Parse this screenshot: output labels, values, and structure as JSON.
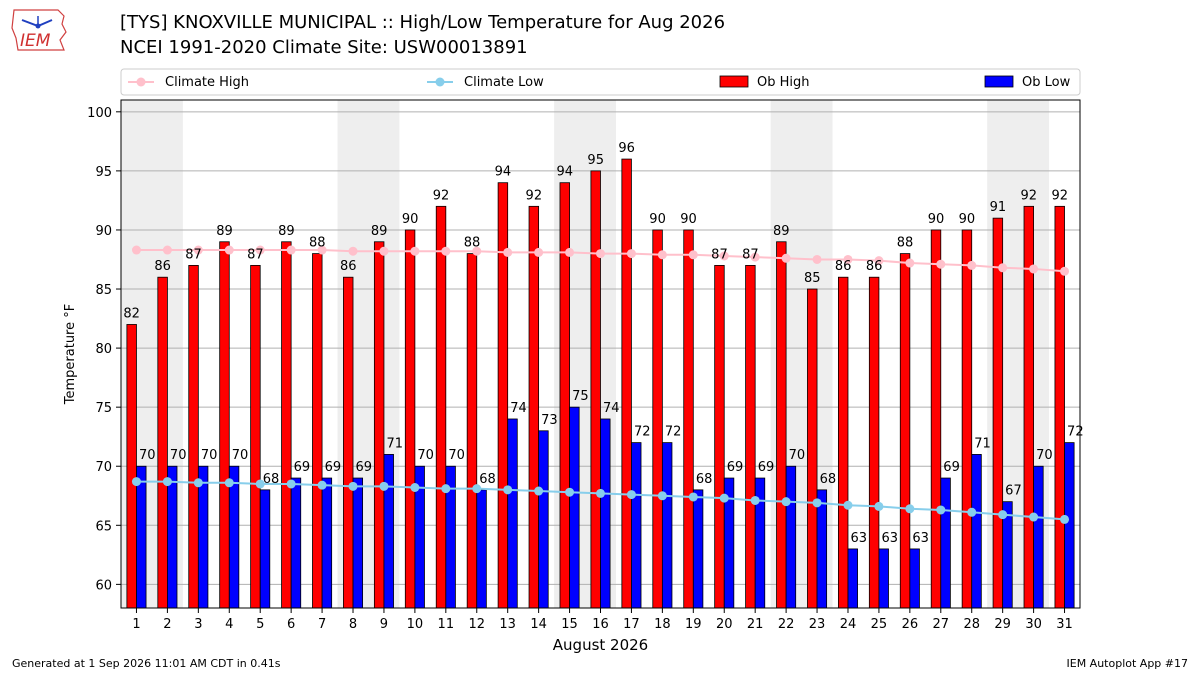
{
  "header": {
    "title_line1": "[TYS] KNOXVILLE MUNICIPAL :: High/Low Temperature for Aug 2026",
    "title_line2": "NCEI 1991-2020 Climate Site: USW00013891",
    "logo_text": "IEM"
  },
  "footer": {
    "generated": "Generated at 1 Sep 2026 11:01 AM CDT in 0.41s",
    "app": "IEM Autoplot App #17"
  },
  "colors": {
    "ob_high": "#ff0000",
    "ob_low": "#0000ff",
    "climate_high": "#ffc0cb",
    "climate_low": "#87ceeb",
    "weekend_shade": "#eeeeee",
    "grid": "#b0b0b0"
  },
  "chart_data": {
    "type": "bar",
    "xlabel": "August 2026",
    "ylabel": "Temperature °F",
    "ylim": [
      58,
      101
    ],
    "yticks": [
      60,
      65,
      70,
      75,
      80,
      85,
      90,
      95,
      100
    ],
    "grid": true,
    "legend_placement": "top",
    "categories": [
      "1",
      "2",
      "3",
      "4",
      "5",
      "6",
      "7",
      "8",
      "9",
      "10",
      "11",
      "12",
      "13",
      "14",
      "15",
      "16",
      "17",
      "18",
      "19",
      "20",
      "21",
      "22",
      "23",
      "24",
      "25",
      "26",
      "27",
      "28",
      "29",
      "30",
      "31"
    ],
    "shaded_days": [
      1,
      8,
      15,
      22,
      29
    ],
    "series": [
      {
        "name": "Climate High",
        "kind": "line",
        "values": [
          88.3,
          88.3,
          88.3,
          88.3,
          88.3,
          88.3,
          88.3,
          88.2,
          88.2,
          88.2,
          88.2,
          88.2,
          88.1,
          88.1,
          88.1,
          88.0,
          88.0,
          87.9,
          87.9,
          87.8,
          87.7,
          87.6,
          87.5,
          87.5,
          87.4,
          87.2,
          87.1,
          87.0,
          86.8,
          86.7,
          86.5
        ]
      },
      {
        "name": "Climate Low",
        "kind": "line",
        "values": [
          68.7,
          68.7,
          68.6,
          68.6,
          68.5,
          68.5,
          68.4,
          68.3,
          68.3,
          68.2,
          68.1,
          68.1,
          68.0,
          67.9,
          67.8,
          67.7,
          67.6,
          67.5,
          67.4,
          67.3,
          67.1,
          67.0,
          66.9,
          66.7,
          66.6,
          66.4,
          66.3,
          66.1,
          65.9,
          65.7,
          65.5
        ]
      },
      {
        "name": "Ob High",
        "kind": "bar",
        "values": [
          82,
          86,
          87,
          89,
          87,
          89,
          88,
          86,
          89,
          90,
          92,
          88,
          94,
          92,
          94,
          95,
          96,
          90,
          90,
          87,
          87,
          89,
          85,
          86,
          86,
          88,
          90,
          90,
          91,
          92,
          92
        ]
      },
      {
        "name": "Ob Low",
        "kind": "bar",
        "values": [
          70,
          70,
          70,
          70,
          68,
          69,
          69,
          69,
          71,
          70,
          70,
          68,
          74,
          73,
          75,
          74,
          72,
          72,
          68,
          69,
          69,
          70,
          68,
          63,
          63,
          63,
          69,
          71,
          67,
          70,
          72
        ]
      }
    ]
  }
}
